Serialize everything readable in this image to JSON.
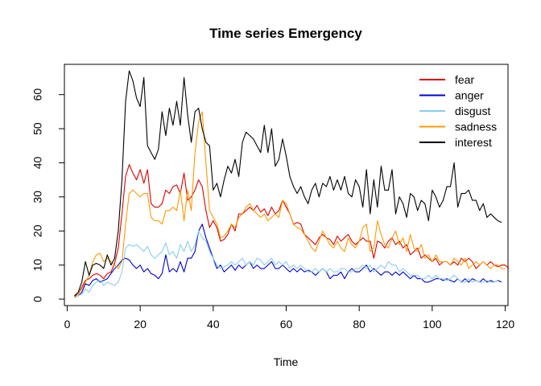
{
  "chart_data": {
    "type": "line",
    "title": "Time series Emergency",
    "xlabel": "Time",
    "ylabel": "",
    "xlim": [
      1,
      119
    ],
    "ylim": [
      0,
      67
    ],
    "x_ticks": [
      0,
      20,
      40,
      60,
      80,
      100,
      120
    ],
    "y_ticks": [
      0,
      10,
      20,
      30,
      40,
      50,
      60
    ],
    "legend_position": "top-right",
    "x_start": 2,
    "series": [
      {
        "name": "fear",
        "color": "#dd0000",
        "values": [
          0.8,
          1.5,
          3.5,
          5.5,
          6,
          7,
          7.5,
          7,
          6,
          7.5,
          8,
          10.5,
          15,
          25,
          36,
          39.5,
          37,
          35,
          38,
          34,
          38,
          28,
          27,
          27,
          28,
          32,
          31,
          33,
          33.5,
          31,
          37,
          29,
          30,
          32,
          35,
          33,
          26,
          21,
          23,
          21,
          17,
          17.5,
          19,
          22,
          20,
          25,
          25,
          26,
          27,
          26,
          27.5,
          25.5,
          26.5,
          24.5,
          27,
          25,
          26,
          29,
          27,
          25,
          22,
          22.5,
          22,
          19,
          18,
          17,
          16,
          18,
          19,
          18,
          17.5,
          16,
          18.5,
          17,
          18,
          19,
          17,
          16,
          17,
          18,
          17,
          17,
          12,
          17,
          16.5,
          15,
          17,
          18,
          16,
          17,
          15,
          16,
          13,
          14,
          15,
          12,
          13,
          12,
          11,
          12,
          10,
          11,
          11,
          10,
          11,
          10,
          12,
          11,
          12,
          11,
          9,
          10,
          11,
          10,
          11,
          10,
          9.5,
          10,
          10,
          9
        ]
      },
      {
        "name": "anger",
        "color": "#0000cc",
        "values": [
          0.5,
          1,
          2,
          4.5,
          4,
          5.5,
          6,
          5,
          5.5,
          6,
          7.5,
          9,
          10,
          11.5,
          12,
          11.5,
          10,
          9,
          10,
          8,
          9,
          7.5,
          7,
          6,
          7.5,
          13,
          8,
          9,
          8,
          11,
          8,
          12,
          12,
          14,
          20,
          22,
          18,
          15,
          12,
          9,
          10,
          8,
          9,
          10,
          8.5,
          10,
          9,
          10,
          11,
          9,
          10,
          9,
          9,
          10,
          11,
          9,
          9,
          10,
          9,
          8,
          9,
          8,
          9,
          8,
          8.5,
          8,
          7,
          8,
          9,
          8,
          6,
          7,
          7,
          8,
          6,
          8,
          9,
          8,
          8,
          9,
          10,
          8,
          9,
          8,
          7,
          8,
          8,
          7,
          8,
          7,
          8,
          7,
          6,
          7,
          6,
          6,
          5,
          5,
          5.5,
          6,
          6,
          5.5,
          6,
          5.5,
          5,
          6,
          5,
          6,
          5,
          6,
          5.5,
          5,
          6,
          5,
          5.5,
          5,
          5.5,
          5
        ]
      },
      {
        "name": "disgust",
        "color": "#87ceeb",
        "values": [
          0.5,
          1,
          1.5,
          3,
          2,
          4,
          5,
          5.5,
          4,
          5,
          4.5,
          4,
          5,
          8,
          15,
          16,
          15.5,
          16,
          15,
          14,
          15.5,
          13,
          12,
          13,
          14,
          16.5,
          13,
          14,
          12,
          16,
          14,
          17,
          14,
          16,
          20,
          18,
          17,
          14,
          12,
          10,
          9,
          9.5,
          10,
          11,
          10,
          11,
          12,
          10,
          11,
          10,
          12,
          11.5,
          10,
          11,
          12,
          10,
          11,
          10,
          11,
          9,
          10,
          9,
          10,
          9,
          8,
          8,
          9,
          8,
          9,
          8,
          9,
          8,
          8,
          9,
          9,
          8,
          8,
          9,
          9,
          10,
          9,
          10,
          8,
          9,
          10,
          9,
          11,
          10,
          10,
          8,
          9,
          8,
          7,
          7,
          7,
          6,
          6,
          7,
          6,
          7,
          6,
          6,
          5.5,
          6,
          7,
          6,
          5,
          5,
          6,
          5,
          5.5,
          5,
          5,
          5.5,
          5,
          5,
          5.5
        ]
      },
      {
        "name": "sadness",
        "color": "#ff9900",
        "values": [
          0.5,
          1.5,
          3,
          5,
          7,
          11,
          13,
          13.5,
          11,
          12,
          11,
          10,
          9,
          11,
          22,
          31,
          32,
          31,
          30,
          31,
          31,
          24,
          23,
          23,
          22,
          26,
          26,
          27,
          26,
          32,
          23,
          32,
          26,
          43,
          52,
          55,
          40,
          26,
          24,
          22,
          18,
          18.5,
          20,
          22,
          21,
          24,
          25,
          27,
          28,
          26,
          25,
          24,
          25,
          23,
          24,
          25,
          24,
          29,
          28,
          25,
          22,
          21,
          20.5,
          19,
          17,
          15,
          14,
          17,
          20,
          18,
          16,
          15,
          17,
          15,
          14,
          18,
          16,
          15,
          17,
          21,
          22,
          14,
          15,
          23,
          19,
          16,
          15,
          18,
          20,
          16,
          18,
          14,
          19,
          15,
          14,
          16,
          12,
          13,
          11,
          13,
          11,
          11,
          11,
          10,
          12,
          11,
          10,
          12,
          9,
          10,
          11,
          10,
          11,
          10,
          9,
          10,
          10,
          9,
          9
        ]
      },
      {
        "name": "interest",
        "color": "#000000",
        "values": [
          1,
          2,
          5,
          11,
          7,
          10,
          10.5,
          10,
          9,
          13,
          10,
          12,
          20,
          35,
          58,
          67,
          64,
          59,
          56.5,
          65,
          45,
          43,
          41,
          44,
          55,
          48,
          56,
          51,
          58,
          51,
          65,
          54,
          46,
          55,
          56,
          50,
          46,
          45,
          32,
          34,
          30,
          35,
          39,
          37,
          41,
          36,
          46,
          49,
          48,
          47,
          45,
          43,
          51,
          43,
          50,
          39,
          41,
          47,
          42,
          36,
          33,
          31,
          33,
          30,
          28,
          32,
          34,
          30,
          34,
          33,
          36,
          32,
          35,
          32,
          36,
          31,
          30,
          35,
          33,
          27,
          38,
          25,
          35,
          27,
          39,
          32,
          32,
          38,
          25,
          30,
          28,
          24,
          31,
          30,
          26,
          29,
          28,
          23,
          32,
          30,
          27,
          29,
          33,
          33,
          40,
          27,
          31,
          31,
          32,
          29,
          29,
          26,
          28,
          24,
          25,
          24,
          23,
          22.5
        ]
      }
    ]
  }
}
